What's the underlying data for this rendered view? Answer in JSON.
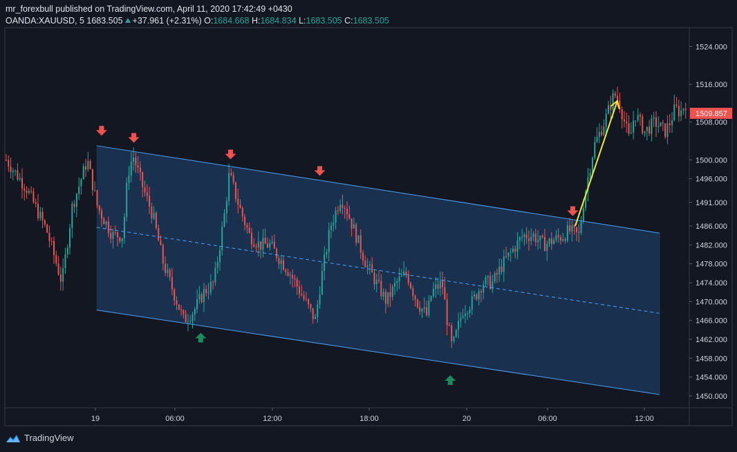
{
  "header": {
    "published": "mr_forexbull published on TradingView.com, April 11, 2020 17:42:49 +0430",
    "symbol": "OANDA:XAUUSD, 5",
    "last": "1683.505",
    "change": "+37.961 (+2.31%)",
    "o_label": "O:",
    "o_value": "1684.668",
    "h_label": "H:",
    "h_value": "1684.834",
    "l_label": "L:",
    "l_value": "1683.505",
    "c_label": "C:",
    "c_value": "1683.505"
  },
  "footer": {
    "brand": "TradingView"
  },
  "colors": {
    "background": "#131722",
    "up": "#26a69a",
    "down": "#ef5350",
    "channel_line": "#4da3f7",
    "channel_fill": "#1e3a5f",
    "arrow_sell": "#ef5350",
    "arrow_buy": "#1e8a5c",
    "projection": "#f5e92b",
    "price_label_bg": "#ef5350"
  },
  "chart_data": {
    "type": "candlestick",
    "symbol": "OANDA:XAUUSD",
    "timeframe": "5",
    "y_ticks": [
      "1524.000",
      "1516.000",
      "1508.000",
      "1500.000",
      "1496.000",
      "1491.000",
      "1486.000",
      "1482.000",
      "1478.000",
      "1474.000",
      "1470.000",
      "1466.000",
      "1462.000",
      "1458.000",
      "1454.000",
      "1450.000"
    ],
    "x_ticks": [
      "19",
      "06:00",
      "12:00",
      "18:00",
      "20",
      "06:00",
      "12:00"
    ],
    "ylim": [
      1447.5,
      1528
    ],
    "current_price_label": "1509.857",
    "current_price": 1509.857,
    "price_path": [
      [
        0,
        1500
      ],
      [
        4,
        1494
      ],
      [
        8,
        1485
      ],
      [
        11,
        1474
      ],
      [
        13,
        1490
      ],
      [
        16,
        1500
      ],
      [
        18,
        1490
      ],
      [
        19,
        1488
      ],
      [
        21,
        1484
      ],
      [
        23,
        1484
      ],
      [
        24,
        1497
      ],
      [
        25,
        1501
      ],
      [
        27,
        1494
      ],
      [
        29,
        1488
      ],
      [
        31,
        1478
      ],
      [
        33,
        1472
      ],
      [
        35,
        1466
      ],
      [
        37,
        1468
      ],
      [
        39,
        1472
      ],
      [
        41,
        1474
      ],
      [
        43,
        1488
      ],
      [
        44,
        1497
      ],
      [
        46,
        1490
      ],
      [
        48,
        1484
      ],
      [
        50,
        1482
      ],
      [
        52,
        1482
      ],
      [
        54,
        1479
      ],
      [
        56,
        1476
      ],
      [
        58,
        1472
      ],
      [
        60,
        1468
      ],
      [
        61,
        1466
      ],
      [
        62,
        1474
      ],
      [
        64,
        1486
      ],
      [
        66,
        1492
      ],
      [
        67,
        1490
      ],
      [
        69,
        1484
      ],
      [
        71,
        1478
      ],
      [
        73,
        1474
      ],
      [
        75,
        1470
      ],
      [
        77,
        1474
      ],
      [
        79,
        1476
      ],
      [
        81,
        1470
      ],
      [
        83,
        1467
      ],
      [
        84,
        1472
      ],
      [
        86,
        1474
      ],
      [
        87,
        1466
      ],
      [
        88,
        1460
      ],
      [
        89,
        1464
      ],
      [
        90,
        1468
      ],
      [
        92,
        1470
      ],
      [
        94,
        1474
      ],
      [
        96,
        1474
      ],
      [
        98,
        1478
      ],
      [
        100,
        1481
      ],
      [
        102,
        1484
      ],
      [
        104,
        1484
      ],
      [
        106,
        1482
      ],
      [
        108,
        1483
      ],
      [
        110,
        1484
      ],
      [
        111,
        1485
      ],
      [
        113,
        1484
      ],
      [
        114,
        1492
      ],
      [
        116,
        1503
      ],
      [
        118,
        1508
      ],
      [
        120,
        1514
      ],
      [
        121,
        1512
      ],
      [
        123,
        1504
      ],
      [
        124,
        1510
      ],
      [
        126,
        1506
      ],
      [
        128,
        1508
      ],
      [
        130,
        1506
      ],
      [
        131,
        1508
      ],
      [
        132,
        1511
      ],
      [
        133,
        1510
      ],
      [
        134,
        1512
      ]
    ],
    "channel": {
      "upper": [
        [
          18.5,
          1503
        ],
        [
          132,
          1484.5
        ]
      ],
      "middle": [
        [
          18.5,
          1485.7
        ],
        [
          132,
          1467.5
        ]
      ],
      "lower": [
        [
          18.5,
          1468.2
        ],
        [
          132,
          1450.3
        ]
      ]
    },
    "sell_arrows": [
      [
        19.5,
        1506
      ],
      [
        26,
        1504.5
      ],
      [
        45.5,
        1501
      ],
      [
        63.5,
        1497.5
      ],
      [
        114.5,
        1489
      ]
    ],
    "buy_arrows": [
      [
        39.5,
        1462.5
      ],
      [
        89.8,
        1453.5
      ]
    ],
    "projection_arrow": [
      [
        115,
        1486
      ],
      [
        123.5,
        1512.5
      ]
    ]
  }
}
